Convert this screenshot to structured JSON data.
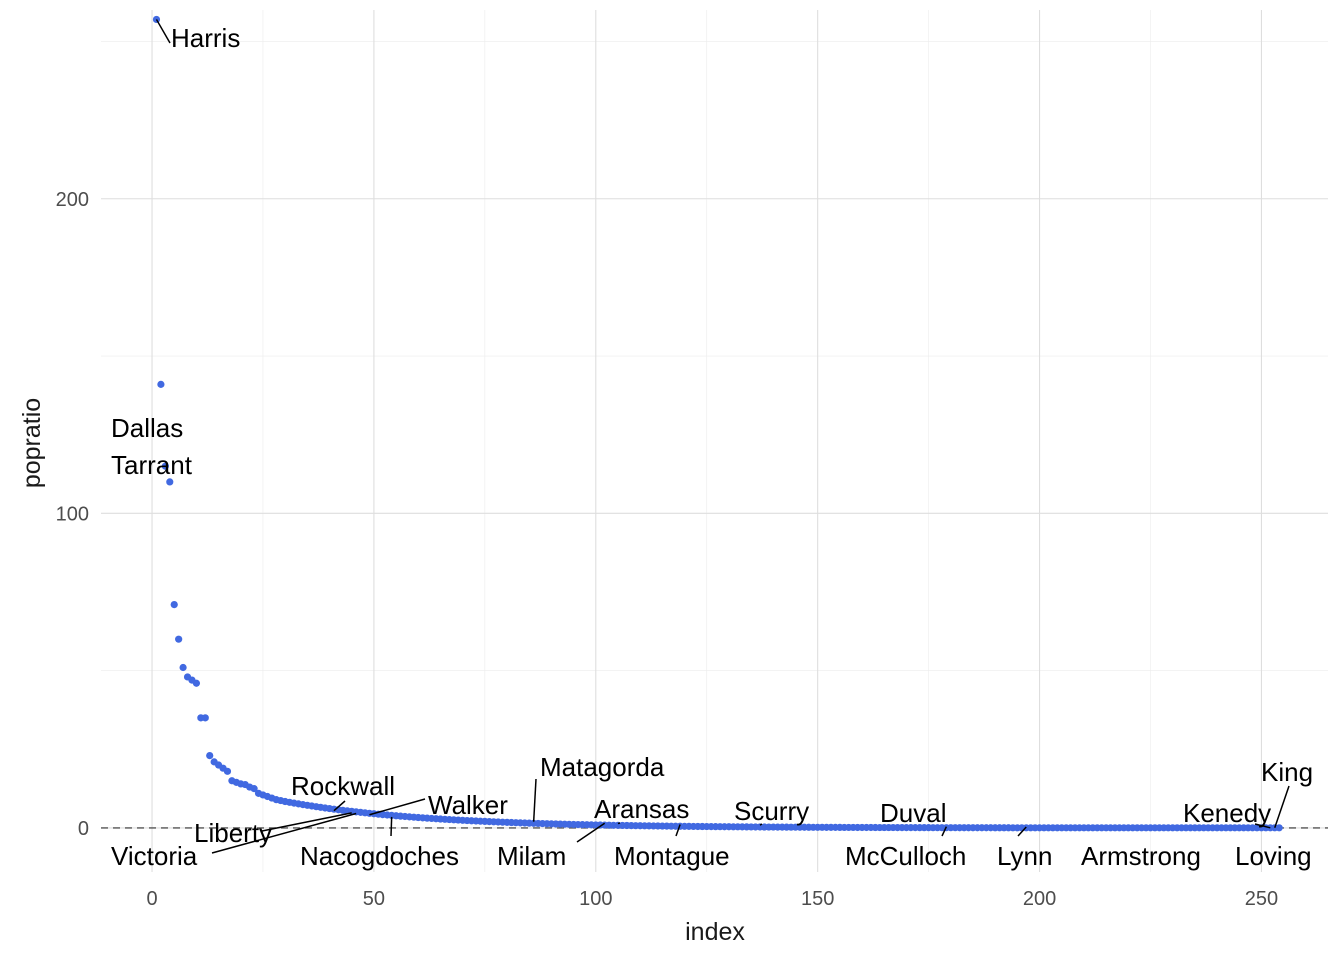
{
  "chart_data": {
    "type": "scatter",
    "xlabel": "index",
    "ylabel": "popratio",
    "xlim": [
      -11.5,
      265
    ],
    "ylim": [
      -14,
      260
    ],
    "x_ticks": [
      0,
      50,
      100,
      150,
      200,
      250
    ],
    "y_ticks": [
      0,
      100,
      200
    ],
    "x_tick_labels": [
      "0",
      "50",
      "100",
      "150",
      "200",
      "250"
    ],
    "y_tick_labels": [
      "0",
      "100",
      "200"
    ],
    "reference_line": {
      "y": 0,
      "style": "dashed"
    },
    "grid": true,
    "point_color": "#4169E1",
    "top_values": [
      257,
      141,
      115,
      110,
      71,
      60,
      51,
      48,
      47,
      46,
      35,
      35,
      23,
      21,
      20,
      19,
      18,
      15,
      14.5,
      14,
      13.8,
      13,
      12.5,
      11,
      10.5,
      10,
      9.5,
      9,
      8.7,
      8.4
    ],
    "decay": {
      "start_value": 8.4,
      "end_value": 0.05,
      "rate": 0.031
    },
    "n_points": 254,
    "labels": [
      {
        "name": "Harris",
        "index": 1,
        "value": 257
      },
      {
        "name": "Dallas",
        "index": 2,
        "value": 141
      },
      {
        "name": "Tarrant",
        "index": 3,
        "value": 115
      },
      {
        "name": "Rockwall",
        "index": 41,
        "value": 5.5
      },
      {
        "name": "Liberty",
        "index": 45,
        "value": 4.8
      },
      {
        "name": "Walker",
        "index": 49,
        "value": 4.2
      },
      {
        "name": "Victoria",
        "index": 46,
        "value": 4.6
      },
      {
        "name": "Nacogdoches",
        "index": 54,
        "value": 3.5
      },
      {
        "name": "Matagorda",
        "index": 86,
        "value": 2.0
      },
      {
        "name": "Milam",
        "index": 102,
        "value": 1.5
      },
      {
        "name": "Aransas",
        "index": 105,
        "value": 1.4
      },
      {
        "name": "Montague",
        "index": 119,
        "value": 1.1
      },
      {
        "name": "Scurry",
        "index": 137,
        "value": 0.9
      },
      {
        "name": "Duval",
        "index": 167,
        "value": 0.5
      },
      {
        "name": "McCulloch",
        "index": 179,
        "value": 0.4
      },
      {
        "name": "Lynn",
        "index": 197,
        "value": 0.3
      },
      {
        "name": "Armstrong",
        "index": 221,
        "value": 0.15
      },
      {
        "name": "Kenedy",
        "index": 252,
        "value": 0.05
      },
      {
        "name": "King",
        "index": 253,
        "value": 0.05
      },
      {
        "name": "Loving",
        "index": 254,
        "value": 0.02
      }
    ]
  }
}
